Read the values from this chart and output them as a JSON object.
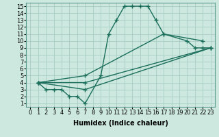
{
  "title": "",
  "xlabel": "Humidex (Indice chaleur)",
  "ylabel": "",
  "bg_color": "#cce8df",
  "grid_color": "#a8ccC4",
  "line_color": "#1a6e5a",
  "xlim": [
    -0.5,
    23.5
  ],
  "ylim": [
    0.5,
    15.5
  ],
  "xticks": [
    0,
    1,
    2,
    3,
    4,
    5,
    6,
    7,
    8,
    9,
    10,
    11,
    12,
    13,
    14,
    15,
    16,
    17,
    18,
    19,
    20,
    21,
    22,
    23
  ],
  "yticks": [
    1,
    2,
    3,
    4,
    5,
    6,
    7,
    8,
    9,
    10,
    11,
    12,
    13,
    14,
    15
  ],
  "lines": [
    {
      "x": [
        1,
        2,
        3,
        4,
        5,
        6,
        7,
        9,
        10,
        11,
        12,
        13,
        14,
        15,
        16,
        17,
        20,
        21,
        22,
        23
      ],
      "y": [
        4,
        3,
        3,
        3,
        2,
        2,
        1,
        5,
        11,
        13,
        15,
        15,
        15,
        15,
        13,
        11,
        10,
        9,
        9,
        9
      ]
    },
    {
      "x": [
        1,
        7,
        17,
        22
      ],
      "y": [
        4,
        5,
        11,
        10
      ]
    },
    {
      "x": [
        1,
        7,
        23
      ],
      "y": [
        4,
        4,
        9
      ]
    },
    {
      "x": [
        1,
        7,
        23
      ],
      "y": [
        4,
        3,
        9
      ]
    }
  ],
  "marker": "+",
  "markersize": 4,
  "linewidth": 1.0,
  "fontsize_label": 7,
  "fontsize_tick": 6
}
